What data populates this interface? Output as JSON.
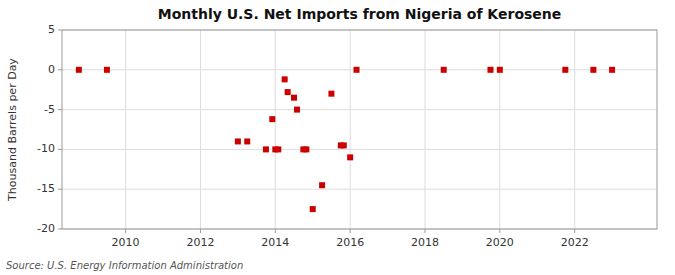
{
  "chart_data": {
    "type": "scatter",
    "title": "Monthly U.S. Net Imports from Nigeria of Kerosene",
    "ylabel": "Thousand Barrels per Day",
    "source": "Source: U.S. Energy Information Administration",
    "color": "#cc0000",
    "marker": "square",
    "grid": true,
    "xlim": [
      2008.3,
      2024.2
    ],
    "xticks": [
      2010,
      2012,
      2014,
      2016,
      2018,
      2020,
      2022
    ],
    "ylim": [
      -20,
      5
    ],
    "yticks": [
      -20,
      -15,
      -10,
      -5,
      0,
      5
    ],
    "x": [
      2008.75,
      2009.5,
      2013.0,
      2013.25,
      2013.75,
      2013.92,
      2014.0,
      2014.08,
      2014.25,
      2014.33,
      2014.5,
      2014.58,
      2014.75,
      2014.83,
      2015.0,
      2015.25,
      2015.5,
      2015.75,
      2015.83,
      2016.0,
      2016.17,
      2018.5,
      2019.75,
      2020.0,
      2021.75,
      2022.5,
      2023.0
    ],
    "values": [
      0,
      0,
      -9,
      -9,
      -10,
      -6.2,
      -10,
      -10,
      -1.2,
      -2.8,
      -3.5,
      -5,
      -10,
      -10,
      -17.5,
      -14.5,
      -3,
      -9.5,
      -9.5,
      -11,
      0,
      0,
      0,
      0,
      0,
      0,
      0
    ]
  }
}
